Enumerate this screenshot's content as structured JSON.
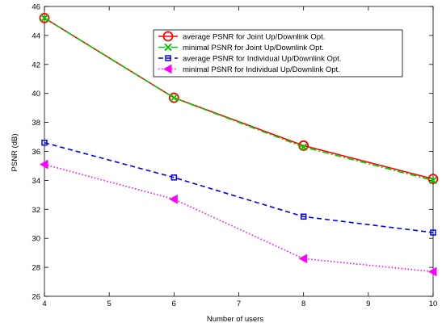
{
  "chart_data": {
    "type": "line",
    "title": "",
    "xlabel": "Number of users",
    "ylabel": "PSNR (dB)",
    "xlim": [
      4,
      10
    ],
    "ylim": [
      26,
      46
    ],
    "xticks": [
      4,
      5,
      6,
      7,
      8,
      9,
      10
    ],
    "yticks": [
      26,
      28,
      30,
      32,
      34,
      36,
      38,
      40,
      42,
      44,
      46
    ],
    "x": [
      4,
      6,
      8,
      10
    ],
    "grid": false,
    "legend_position": "top-right",
    "series": [
      {
        "name": "average PSNR for Joint Up/Downlink Opt.",
        "values": [
          45.2,
          39.7,
          36.4,
          34.1
        ],
        "color": "#ff0000",
        "line_style": "solid",
        "marker": "circle"
      },
      {
        "name": "minimal PSNR for Joint Up/Downlink Opt.",
        "values": [
          45.2,
          39.7,
          36.3,
          34.0
        ],
        "color": "#00cc00",
        "line_style": "dashdot",
        "marker": "x"
      },
      {
        "name": "average PSNR for Individual Up/Downlink Opt.",
        "values": [
          36.6,
          34.2,
          31.5,
          30.4
        ],
        "color": "#0000ee",
        "line_style": "dashed",
        "marker": "square"
      },
      {
        "name": "minimal PSNR for Individual Up/Downlink Opt.",
        "values": [
          35.1,
          32.7,
          28.6,
          27.7
        ],
        "color": "#ff00ff",
        "line_style": "dotted",
        "marker": "triangle-left"
      }
    ]
  }
}
